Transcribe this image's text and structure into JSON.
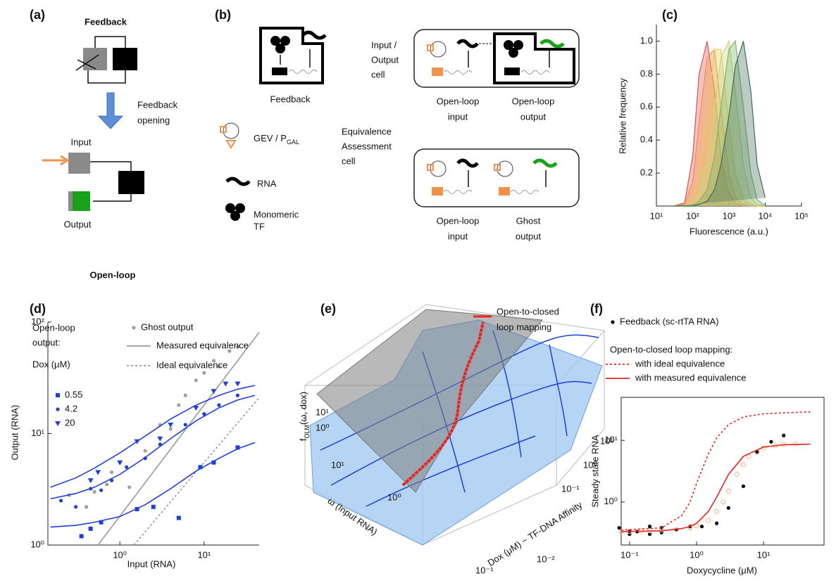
{
  "panel_a": {
    "label": "(a)",
    "feedback": "Feedback",
    "opening": [
      "Feedback",
      "opening"
    ],
    "input": "Input",
    "output": "Output",
    "open_loop": "Open-loop"
  },
  "panel_b": {
    "label": "(b)",
    "feedback": "Feedback",
    "io_cell": [
      "Input /",
      "Output",
      "cell"
    ],
    "io_input": [
      "Open-loop",
      "input"
    ],
    "io_output": [
      "Open-loop",
      "output"
    ],
    "gev": {
      "main": "GEV / P",
      "sub": "GAL"
    },
    "rna": "RNA",
    "tf": [
      "Monomeric",
      "TF"
    ],
    "eq_cell": [
      "Equivalence",
      "Assessment",
      "cell"
    ],
    "eq_input": [
      "Open-loop",
      "input"
    ],
    "eq_output": [
      "Ghost",
      "output"
    ]
  },
  "panel_e": {
    "label": "(e)",
    "legend": [
      "Open-to-closed",
      "loop mapping"
    ],
    "z_label": {
      "main": "f",
      "sub": "OLM",
      "rest": "(ω, dox)"
    },
    "z_ticks": [
      "10¹",
      "10⁰"
    ],
    "omega_label": "ω (Input RNA)",
    "omega_ticks": [
      "10¹",
      "10⁰",
      "10⁻¹"
    ],
    "dox_label": "Dox (μM) ~ TF-DNA Affinity",
    "dox_ticks": [
      "10⁻²",
      "10⁻¹",
      "10⁰",
      "10¹"
    ]
  },
  "chart_data": [
    {
      "type": "area",
      "panel_label": "(c)",
      "x_label": "Fluorescence (a.u.)",
      "y_label": "Relative frequency",
      "xscale": "log",
      "xlim": [
        10,
        100000
      ],
      "xticks": [
        {
          "value": 10,
          "label": "10¹"
        },
        {
          "value": 100,
          "label": "10²"
        },
        {
          "value": 1000,
          "label": "10³"
        },
        {
          "value": 10000,
          "label": "10⁴"
        },
        {
          "value": 100000,
          "label": "10⁵"
        }
      ],
      "ylim": [
        0,
        1.1
      ],
      "yticks": [
        0.2,
        0.4,
        0.6,
        0.8,
        {
          "value": 1,
          "label": "1.0"
        }
      ],
      "x": [
        30,
        60,
        100,
        150,
        250,
        400,
        600,
        1000,
        1500,
        2500,
        4000,
        6000,
        10000
      ],
      "series": [
        {
          "color": "#d9534f",
          "values": [
            0,
            0.02,
            0.3,
            0.8,
            1.0,
            0.7,
            0.3,
            0.08,
            0.02,
            0,
            0,
            0,
            0
          ]
        },
        {
          "color": "#f0924a",
          "values": [
            0,
            0.01,
            0.15,
            0.5,
            0.9,
            0.95,
            0.6,
            0.2,
            0.05,
            0.01,
            0,
            0,
            0
          ]
        },
        {
          "color": "#e8c95a",
          "values": [
            0,
            0,
            0.05,
            0.2,
            0.55,
            0.95,
            0.95,
            0.5,
            0.2,
            0.04,
            0.01,
            0,
            0
          ]
        },
        {
          "color": "#c9d67a",
          "values": [
            0,
            0,
            0.02,
            0.08,
            0.25,
            0.6,
            0.9,
            1.0,
            0.7,
            0.25,
            0.05,
            0.01,
            0
          ]
        },
        {
          "color": "#7fb26a",
          "values": [
            0,
            0,
            0,
            0.03,
            0.1,
            0.3,
            0.6,
            0.95,
            1.0,
            0.6,
            0.2,
            0.04,
            0
          ]
        },
        {
          "color": "#3f6e55",
          "values": [
            0,
            0,
            0,
            0.01,
            0.03,
            0.1,
            0.25,
            0.55,
            0.85,
            1.0,
            0.7,
            0.25,
            0.05
          ]
        }
      ]
    },
    {
      "type": "scatter",
      "panel_label": "(d)",
      "x_label": "Input (RNA)",
      "y_label": "Output (RNA)",
      "xscale": "log",
      "yscale": "log",
      "legend_title": [
        "Open-loop",
        "output:",
        "Dox (μM)"
      ],
      "xlim": [
        0.14,
        45
      ],
      "xticks": [
        {
          "value": 1,
          "label": "10⁰"
        },
        {
          "value": 10,
          "label": "10¹"
        }
      ],
      "ylim": [
        1,
        100
      ],
      "yticks": [
        {
          "value": 1,
          "label": "10⁰"
        },
        {
          "value": 10,
          "label": "10¹"
        },
        {
          "value": 100,
          "label": "10²"
        }
      ],
      "series": [
        {
          "name": "Ghost output",
          "color": "#a0a0a0",
          "marker": "circle",
          "x": [
            0.25,
            0.4,
            0.5,
            0.7,
            0.8,
            1,
            1.3,
            2,
            3,
            4,
            5,
            6,
            8,
            10,
            13,
            15,
            20,
            25
          ],
          "values": [
            2.8,
            2.2,
            3,
            3.5,
            4.5,
            5.5,
            3.3,
            7,
            12,
            11,
            18,
            22,
            30,
            35,
            45,
            40,
            55,
            60
          ]
        },
        {
          "name": "Measured equivalence",
          "color": "#999999",
          "marker": "line",
          "x": [
            0.55,
            45
          ],
          "values": [
            1,
            81
          ]
        },
        {
          "name": "Ideal equivalence",
          "color": "#999999",
          "marker": "dotted-line",
          "x": [
            1.47,
            45
          ],
          "values": [
            1,
            21
          ]
        },
        {
          "name": "0.55",
          "color": "#1f3fd9",
          "marker": "square",
          "x": [
            0.35,
            0.45,
            0.6,
            1.6,
            2.5,
            5,
            9,
            13,
            25
          ],
          "values": [
            1.2,
            1.4,
            1.6,
            2.1,
            2.2,
            1.75,
            5,
            5.5,
            7.5
          ]
        },
        {
          "name": "4.2",
          "color": "#1f3fd9",
          "marker": "circle",
          "x": [
            0.2,
            0.3,
            0.45,
            0.6,
            0.8,
            1.2,
            2,
            3,
            6,
            10,
            15,
            25
          ],
          "values": [
            2.5,
            2.2,
            3.2,
            3.1,
            3.8,
            5,
            6,
            8,
            12,
            15,
            18,
            22
          ]
        },
        {
          "name": "20",
          "color": "#1f3fd9",
          "marker": "triangle",
          "x": [
            0.45,
            0.55,
            1,
            1.6,
            3,
            4,
            8,
            13,
            18,
            25
          ],
          "values": [
            3.8,
            4.5,
            5.5,
            8.5,
            9,
            12,
            17,
            24,
            28,
            28
          ]
        },
        {
          "color": "#1f3fd9",
          "marker": "line",
          "x": [
            0.15,
            0.3,
            0.5,
            1,
            2,
            4,
            8,
            15,
            25,
            40
          ],
          "values": [
            1.45,
            1.5,
            1.6,
            1.8,
            2.3,
            3.2,
            4.6,
            6,
            7.3,
            8.3
          ]
        },
        {
          "color": "#1f3fd9",
          "marker": "line",
          "x": [
            0.15,
            0.3,
            0.5,
            1,
            2,
            4,
            8,
            15,
            25,
            40
          ],
          "values": [
            2.6,
            2.9,
            3.3,
            4.3,
            6.1,
            9,
            13,
            17,
            20,
            22
          ]
        },
        {
          "color": "#1f3fd9",
          "marker": "line",
          "x": [
            0.15,
            0.3,
            0.5,
            1,
            2,
            4,
            8,
            15,
            25,
            40
          ],
          "values": [
            3.3,
            4,
            4.9,
            6.7,
            9.5,
            13.5,
            18,
            22,
            25,
            27
          ]
        }
      ]
    },
    {
      "type": "scatter",
      "panel_label": "(f)",
      "x_label": "Doxycycline (μM)",
      "y_label": "Steady state RNA",
      "xscale": "log",
      "yscale": "log",
      "legend_subtitle": "Open-to-closed loop mapping:",
      "xlim": [
        0.075,
        80
      ],
      "xticks": [
        {
          "value": 0.1,
          "label": "10⁻¹"
        },
        {
          "value": 1,
          "label": "10⁰"
        },
        {
          "value": 10,
          "label": "10¹"
        }
      ],
      "ylim": [
        0.2,
        50
      ],
      "yticks": [
        {
          "value": 1,
          "label": "10⁰"
        },
        {
          "value": 10,
          "label": "10¹"
        }
      ],
      "series": [
        {
          "name": "Feedback (sc-rtTA RNA)",
          "color": "#000000",
          "marker": "circle",
          "x": [
            0.07,
            0.1,
            0.1,
            0.13,
            0.2,
            0.2,
            0.3,
            0.3,
            0.5,
            0.8,
            1.2,
            2,
            3,
            5,
            8,
            13,
            20
          ],
          "values": [
            0.38,
            0.3,
            0.34,
            0.33,
            0.4,
            0.3,
            0.32,
            0.38,
            0.35,
            0.4,
            0.4,
            0.45,
            0.8,
            1.8,
            6.5,
            9.5,
            12
          ]
        },
        {
          "color": "#f4b183",
          "marker": "open-circle",
          "x": [
            0.075,
            0.1,
            0.15,
            0.2,
            0.3,
            0.5,
            0.8,
            1,
            1.5,
            2,
            2.5,
            3,
            4,
            5,
            6,
            8,
            10,
            15,
            20,
            30
          ],
          "values": [
            0.33,
            0.33,
            0.34,
            0.34,
            0.35,
            0.36,
            0.38,
            0.41,
            0.5,
            0.7,
            1,
            1.5,
            2.8,
            4,
            5.5,
            6.5,
            7.5,
            8.2,
            8.6,
            8.8
          ]
        },
        {
          "name": "with ideal equivalence",
          "color": "#e8251f",
          "marker": "dotted-line",
          "x": [
            0.075,
            0.3,
            0.6,
            0.8,
            1,
            1.5,
            2,
            3,
            5,
            10,
            20,
            50
          ],
          "values": [
            0.35,
            0.38,
            0.6,
            1.0,
            2,
            6,
            11,
            18,
            24,
            27,
            28,
            29
          ]
        },
        {
          "name": "with measured equivalence",
          "color": "#e8251f",
          "marker": "line",
          "x": [
            0.075,
            0.3,
            0.6,
            0.8,
            1,
            1.5,
            2,
            3,
            5,
            10,
            20,
            50
          ],
          "values": [
            0.33,
            0.34,
            0.37,
            0.4,
            0.45,
            0.7,
            1.2,
            2.8,
            5.5,
            7.8,
            8.5,
            8.7
          ]
        }
      ]
    }
  ]
}
